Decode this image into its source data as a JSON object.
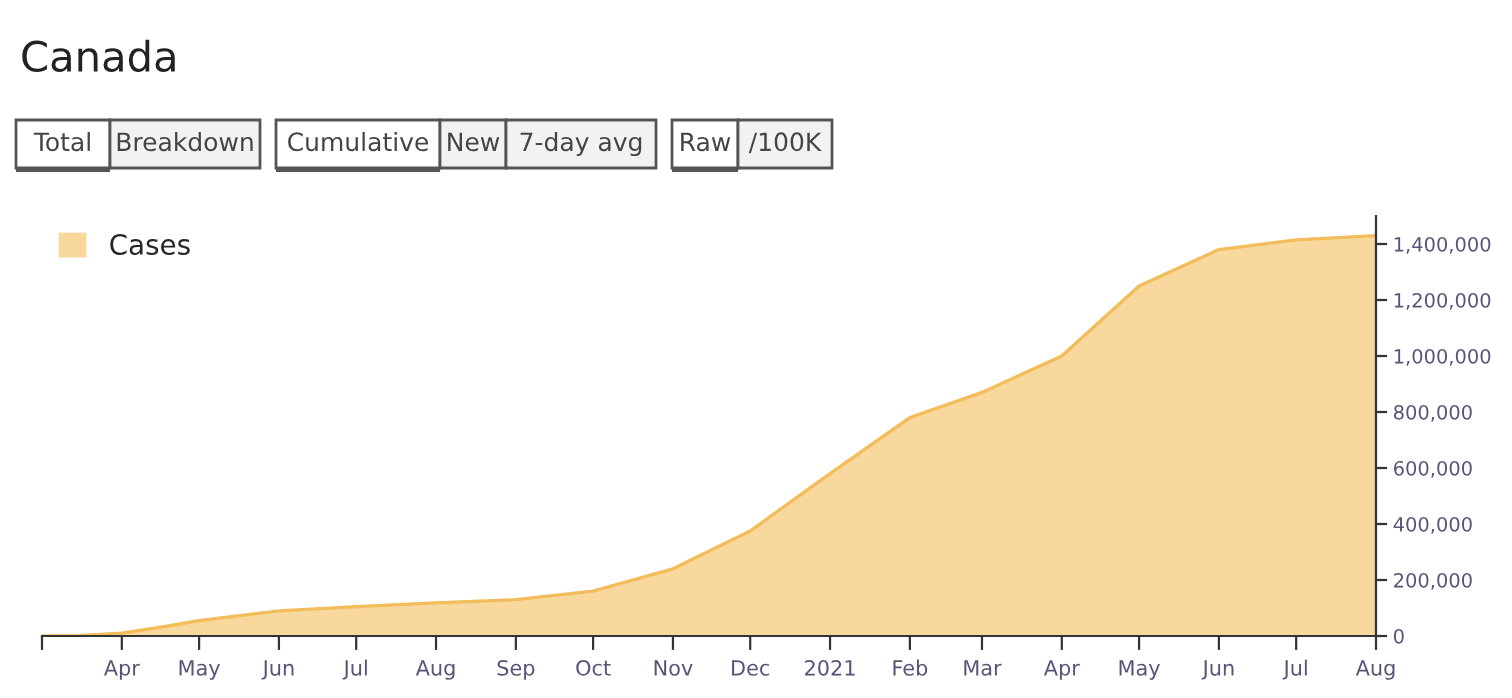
{
  "chart_data": {
    "type": "area",
    "title": "Canada",
    "annotations": [
      "Total",
      "Breakdown",
      "Cumulative",
      "New",
      "7-day avg",
      "Raw",
      "/100K"
    ],
    "x": [
      "2020-03-01",
      "2020-03-15",
      "2020-04-01",
      "2020-04-15",
      "2020-05-01",
      "2020-06-01",
      "2020-07-01",
      "2020-08-01",
      "2020-09-01",
      "2020-10-01",
      "2020-11-01",
      "2020-12-01",
      "2021-01-01",
      "2021-02-01",
      "2021-03-01",
      "2021-04-01",
      "2021-05-01",
      "2021-06-01",
      "2021-07-01",
      "2021-08-01"
    ],
    "series": [
      {
        "name": "Cases",
        "color": "#f8d89c",
        "values": [
          0,
          1000,
          10000,
          30000,
          55000,
          90000,
          105000,
          118000,
          130000,
          160000,
          240000,
          375000,
          580000,
          780000,
          870000,
          1000000,
          1250000,
          1380000,
          1415000,
          1430000
        ]
      }
    ],
    "ylim": [
      0,
      1500000
    ],
    "yticks": [
      {
        "value": 0,
        "label": "0"
      },
      {
        "value": 200000,
        "label": "200,000"
      },
      {
        "value": 400000,
        "label": "400,000"
      },
      {
        "value": 600000,
        "label": "600,000"
      },
      {
        "value": 800000,
        "label": "800,000"
      },
      {
        "value": 1000000,
        "label": "1,000,000"
      },
      {
        "value": 1200000,
        "label": "1,200,000"
      },
      {
        "value": 1400000,
        "label": "1,400,000"
      }
    ],
    "xlim": [
      "2020-03-01",
      "2021-08-01"
    ],
    "xticks": [
      {
        "value": "2020-03-01",
        "label": null
      },
      {
        "value": "2020-04-01",
        "label": "Apr"
      },
      {
        "value": "2020-05-01",
        "label": "May"
      },
      {
        "value": "2020-06-01",
        "label": "Jun"
      },
      {
        "value": "2020-07-01",
        "label": "Jul"
      },
      {
        "value": "2020-08-01",
        "label": "Aug"
      },
      {
        "value": "2020-09-01",
        "label": "Sep"
      },
      {
        "value": "2020-10-01",
        "label": "Oct"
      },
      {
        "value": "2020-11-01",
        "label": "Nov"
      },
      {
        "value": "2020-12-01",
        "label": "Dec"
      },
      {
        "value": "2021-01-01",
        "label": "2021"
      },
      {
        "value": "2021-02-01",
        "label": "Feb"
      },
      {
        "value": "2021-03-01",
        "label": "Mar"
      },
      {
        "value": "2021-04-01",
        "label": "Apr"
      },
      {
        "value": "2021-05-01",
        "label": "May"
      },
      {
        "value": "2021-06-01",
        "label": "Jun"
      },
      {
        "value": "2021-07-01",
        "label": "Jul"
      },
      {
        "value": "2021-08-01",
        "label": "Aug"
      }
    ],
    "grid": false,
    "legend": "top left"
  }
}
